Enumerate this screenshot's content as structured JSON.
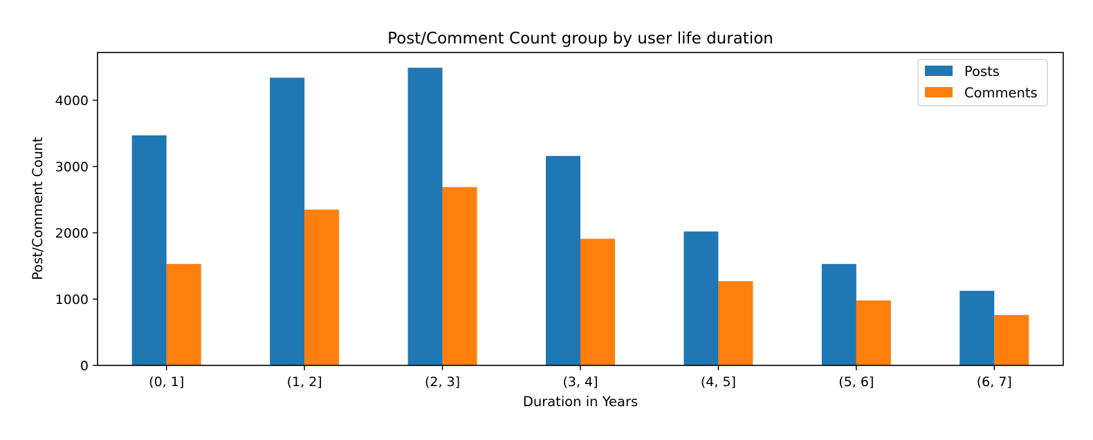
{
  "chart_data": {
    "type": "bar",
    "title": "Post/Comment Count group by user life duration",
    "xlabel": "Duration in Years",
    "ylabel": "Post/Comment Count",
    "categories": [
      "(0, 1]",
      "(1, 2]",
      "(2, 3]",
      "(3, 4]",
      "(4, 5]",
      "(5, 6]",
      "(6, 7]"
    ],
    "series": [
      {
        "name": "Posts",
        "color": "#1f77b4",
        "values": [
          3470,
          4340,
          4490,
          3160,
          2020,
          1530,
          1125
        ]
      },
      {
        "name": "Comments",
        "color": "#ff7f0e",
        "values": [
          1530,
          2350,
          2690,
          1910,
          1270,
          980,
          760
        ]
      }
    ],
    "yticks": [
      0,
      1000,
      2000,
      3000,
      4000
    ],
    "ylim": [
      0,
      4720
    ],
    "grid": false,
    "legend_position": "top-right"
  }
}
